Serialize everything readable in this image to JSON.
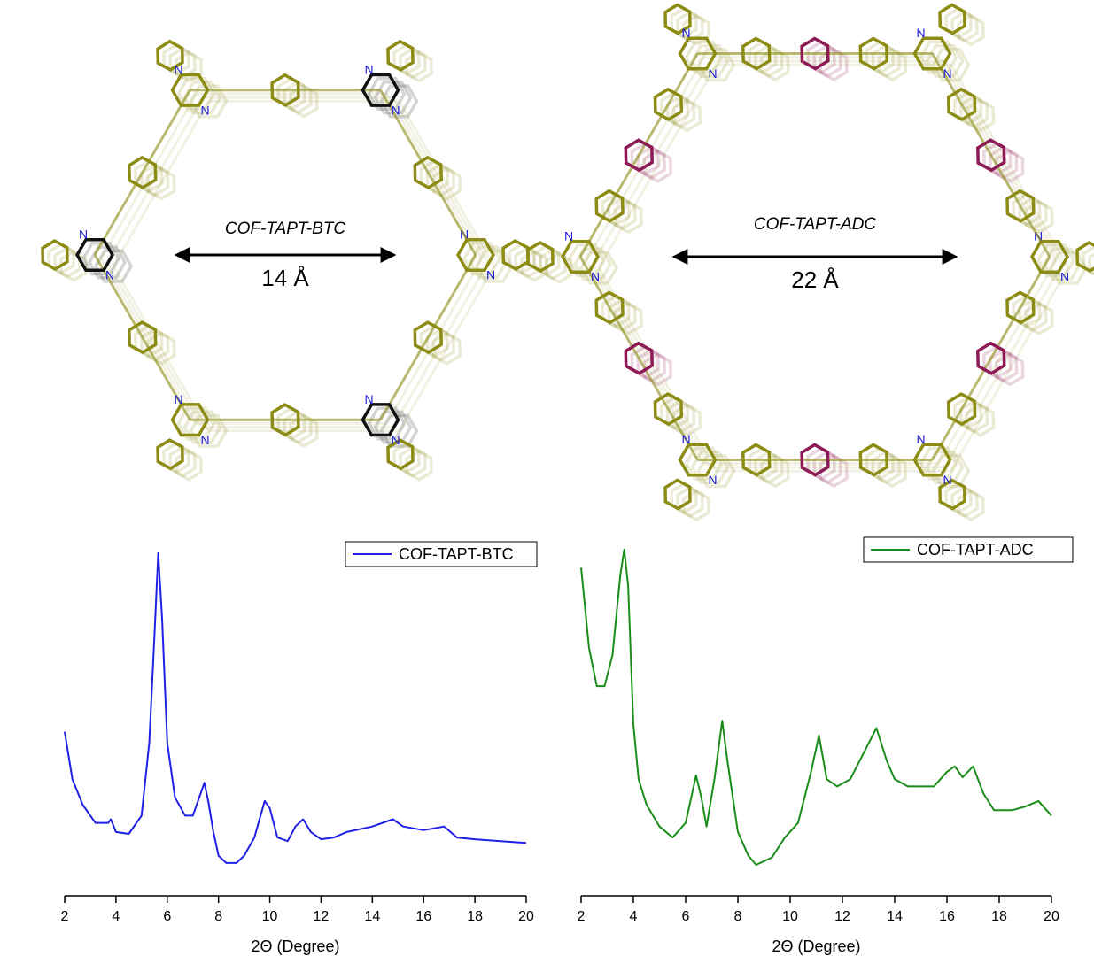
{
  "structures": [
    {
      "name": "COF-TAPT-BTC",
      "pore": "14 Å"
    },
    {
      "name": "COF-TAPT-ADC",
      "pore": "22 Å"
    }
  ],
  "atom_label": "N",
  "chart_data": [
    {
      "type": "line",
      "xlabel": "2Θ (Degree)",
      "xlim": [
        2,
        20
      ],
      "xticks": [
        2,
        4,
        6,
        8,
        10,
        12,
        14,
        16,
        18,
        20
      ],
      "ylim": [
        0,
        100
      ],
      "legend": "upper-right",
      "x": [
        2.0,
        2.3,
        2.7,
        3.2,
        3.7,
        3.8,
        4.0,
        4.5,
        5.0,
        5.3,
        5.5,
        5.65,
        5.8,
        6.0,
        6.3,
        6.7,
        7.0,
        7.2,
        7.45,
        7.6,
        7.8,
        8.0,
        8.3,
        8.7,
        9.0,
        9.4,
        9.8,
        10.0,
        10.3,
        10.7,
        11.0,
        11.3,
        11.6,
        12.0,
        12.5,
        13.0,
        14.0,
        14.8,
        15.2,
        16.0,
        16.8,
        17.3,
        18.0,
        19.0,
        20.0
      ],
      "series": [
        {
          "name": "COF-TAPT-BTC",
          "color": "#1f1fe6",
          "values": [
            45,
            32,
            25,
            20,
            20,
            21,
            17.5,
            17,
            22,
            42,
            71,
            94,
            76,
            42,
            27,
            22,
            22,
            26,
            31,
            26,
            17.5,
            11,
            9,
            9,
            11,
            16,
            26,
            24,
            16,
            15,
            19,
            21,
            17.5,
            15.5,
            16,
            17.5,
            19,
            21,
            19,
            18,
            19,
            16,
            15.5,
            15,
            14.5
          ]
        }
      ]
    },
    {
      "type": "line",
      "xlabel": "2Θ (Degree)",
      "xlim": [
        2,
        20
      ],
      "xticks": [
        2,
        4,
        6,
        8,
        10,
        12,
        14,
        16,
        18,
        20
      ],
      "ylim": [
        0,
        100
      ],
      "legend": "upper-right",
      "x": [
        2.0,
        2.3,
        2.6,
        2.9,
        3.2,
        3.5,
        3.65,
        3.8,
        4.0,
        4.2,
        4.5,
        5.0,
        5.5,
        6.0,
        6.4,
        6.6,
        6.8,
        7.1,
        7.4,
        7.6,
        8.0,
        8.4,
        8.7,
        9.3,
        9.8,
        10.3,
        10.8,
        11.1,
        11.4,
        11.8,
        12.3,
        12.8,
        13.3,
        13.7,
        14.0,
        14.5,
        15.0,
        15.5,
        16.0,
        16.3,
        16.6,
        17.0,
        17.4,
        17.8,
        18.5,
        19.0,
        19.5,
        20.0
      ],
      "series": [
        {
          "name": "COF-TAPT-ADC",
          "color": "#1a8c1a",
          "values": [
            90,
            68,
            57.5,
            57.5,
            66,
            88,
            95,
            85,
            47,
            32,
            25,
            19,
            16,
            20,
            33,
            27,
            19,
            32,
            48,
            37,
            17.5,
            11,
            8.5,
            10.5,
            16,
            20,
            34,
            44,
            32,
            30,
            32,
            39,
            46,
            37,
            32,
            30,
            30,
            30,
            34,
            35.5,
            32.5,
            35.5,
            28,
            23.5,
            23.5,
            24.5,
            26,
            22
          ]
        }
      ]
    }
  ]
}
